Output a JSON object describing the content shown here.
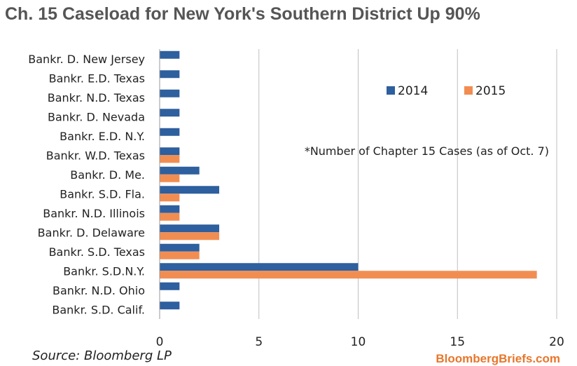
{
  "title": "Ch. 15 Caseload for New York's Southern District Up 90%",
  "chart_data": {
    "type": "bar",
    "orientation": "horizontal",
    "categories": [
      "Bankr. D. New Jersey",
      "Bankr. E.D. Texas",
      "Bankr. N.D. Texas",
      "Bankr. D. Nevada",
      "Bankr. E.D. N.Y.",
      "Bankr. W.D. Texas",
      "Bankr. D. Me.",
      "Bankr. S.D. Fla.",
      "Bankr. N.D. Illinois",
      "Bankr. D. Delaware",
      "Bankr. S.D. Texas",
      "Bankr. S.D.N.Y.",
      "Bankr. N.D. Ohio",
      "Bankr. S.D. Calif."
    ],
    "series": [
      {
        "name": "2014",
        "color": "#2e5f9e",
        "values": [
          1,
          1,
          1,
          1,
          1,
          1,
          2,
          3,
          1,
          3,
          2,
          10,
          1,
          1
        ]
      },
      {
        "name": "2015",
        "color": "#f28d52",
        "values": [
          0,
          0,
          0,
          0,
          0,
          1,
          1,
          1,
          1,
          3,
          2,
          19,
          0,
          0
        ]
      }
    ],
    "xlim": [
      0,
      20
    ],
    "xticks": [
      0,
      5,
      10,
      15,
      20
    ],
    "grid": true,
    "legend_position": "top-right",
    "annotation": "*Number of Chapter 15 Cases (as of Oct. 7)"
  },
  "footer": {
    "source": "Source: Bloomberg LP",
    "brand": "BloombergBriefs.com"
  }
}
